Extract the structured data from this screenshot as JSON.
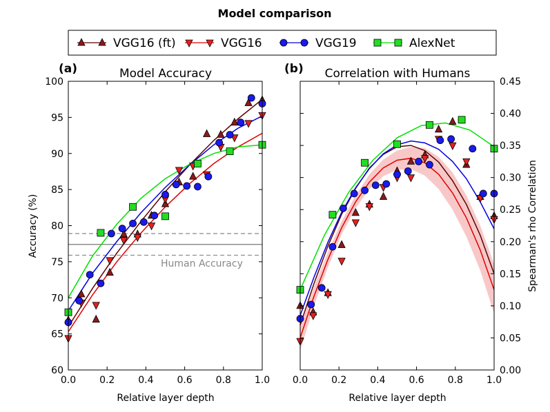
{
  "chart_data": {
    "title": "Model comparison",
    "legend": {
      "position": "top-center",
      "entries": [
        {
          "label": "VGG16 (ft)",
          "color": "#5a0000",
          "marker": "triangle-up",
          "markerFill": "#8b1a1a"
        },
        {
          "label": "VGG16",
          "color": "#e00000",
          "marker": "triangle-down",
          "markerFill": "#e82020"
        },
        {
          "label": "VGG19",
          "color": "#0000e0",
          "marker": "circle",
          "markerFill": "#1a1aee"
        },
        {
          "label": "AlexNet",
          "color": "#00e000",
          "marker": "square",
          "markerFill": "#22dd22"
        }
      ]
    },
    "panels": [
      {
        "panel_label": "(a)",
        "title": "Model Accuracy",
        "type": "scatter",
        "xlabel": "Relative layer depth",
        "ylabel": "Accuracy (%)",
        "xlim": [
          0,
          1
        ],
        "ylim": [
          60,
          100
        ],
        "xticks": [
          "0.0",
          "0.2",
          "0.4",
          "0.6",
          "0.8",
          "1.0"
        ],
        "yticks": [
          "60",
          "65",
          "70",
          "75",
          "80",
          "85",
          "90",
          "95",
          "100"
        ],
        "reference": {
          "label": "Human Accuracy",
          "value": 77.4,
          "band": [
            75.9,
            78.9
          ]
        },
        "series": [
          {
            "name": "VGG16 (ft)",
            "x": [
              0,
              0.067,
              0.143,
              0.214,
              0.286,
              0.357,
              0.429,
              0.5,
              0.571,
              0.643,
              0.714,
              0.786,
              0.857,
              0.929,
              1.0
            ],
            "y": [
              66.9,
              70.5,
              67.0,
              73.5,
              78.8,
              78.8,
              81.4,
              83.0,
              86.0,
              86.8,
              92.7,
              92.6,
              94.3,
              97.0,
              97.4
            ],
            "fit": [
              66.0,
              71.3,
              76.2,
              80.6,
              84.7,
              88.4,
              91.8,
              94.8,
              97.5
            ]
          },
          {
            "name": "VGG16",
            "x": [
              0,
              0.067,
              0.143,
              0.214,
              0.286,
              0.357,
              0.429,
              0.5,
              0.571,
              0.643,
              0.714,
              0.786,
              0.857,
              0.929,
              1.0
            ],
            "y": [
              64.4,
              69.3,
              69.0,
              75.2,
              78.0,
              78.4,
              80.0,
              83.7,
              87.7,
              88.3,
              87.1,
              90.9,
              92.2,
              94.2,
              95.3
            ],
            "fit": [
              65.3,
              70.4,
              75.0,
              79.0,
              82.6,
              85.8,
              88.6,
              90.9,
              92.8
            ]
          },
          {
            "name": "VGG19",
            "x": [
              0,
              0.056,
              0.111,
              0.167,
              0.222,
              0.278,
              0.333,
              0.389,
              0.444,
              0.5,
              0.556,
              0.611,
              0.667,
              0.722,
              0.778,
              0.833,
              0.889,
              0.944,
              1.0
            ],
            "y": [
              66.6,
              69.6,
              73.2,
              72.0,
              78.9,
              79.6,
              80.3,
              80.5,
              81.4,
              84.3,
              85.7,
              85.5,
              85.4,
              86.8,
              91.5,
              92.6,
              94.3,
              97.7,
              96.9
            ],
            "fit": [
              68.2,
              73.4,
              77.8,
              81.8,
              85.3,
              88.4,
              91.2,
              93.5,
              95.2
            ]
          },
          {
            "name": "AlexNet",
            "x": [
              0,
              0.167,
              0.333,
              0.5,
              0.667,
              0.833,
              1.0
            ],
            "y": [
              68.0,
              79.0,
              82.6,
              81.3,
              88.6,
              90.3,
              91.2
            ],
            "fit": [
              70.0,
              75.8,
              80.2,
              83.8,
              86.5,
              88.5,
              90.0,
              90.9,
              91.2
            ]
          }
        ]
      },
      {
        "panel_label": "(b)",
        "title": "Correlation with Humans",
        "type": "scatter",
        "xlabel": "Relative layer depth",
        "ylabel": "Spearman's rho Correlation",
        "xlim": [
          0,
          1
        ],
        "ylim": [
          0,
          0.45
        ],
        "xticks": [
          "0.0",
          "0.2",
          "0.4",
          "0.6",
          "0.8",
          "1.0"
        ],
        "yticks": [
          "0.00",
          "0.05",
          "0.10",
          "0.15",
          "0.20",
          "0.25",
          "0.30",
          "0.35",
          "0.40",
          "0.45"
        ],
        "series": [
          {
            "name": "VGG16 (ft)",
            "x": [
              0,
              0.067,
              0.143,
              0.214,
              0.286,
              0.357,
              0.429,
              0.5,
              0.571,
              0.643,
              0.714,
              0.786,
              0.857,
              0.929,
              1.0
            ],
            "y": [
              0.1,
              0.09,
              0.12,
              0.195,
              0.245,
              0.258,
              0.27,
              0.31,
              0.325,
              0.335,
              0.375,
              0.387,
              0.32,
              0.27,
              0.24
            ],
            "fit": [
              0.07,
              0.135,
              0.193,
              0.243,
              0.283,
              0.315,
              0.336,
              0.348,
              0.35,
              0.342,
              0.324,
              0.295,
              0.258,
              0.21,
              0.15
            ]
          },
          {
            "name": "VGG16",
            "x": [
              0,
              0.067,
              0.143,
              0.214,
              0.286,
              0.357,
              0.429,
              0.5,
              0.571,
              0.643,
              0.714,
              0.786,
              0.857,
              0.929,
              1.0
            ],
            "y": [
              0.045,
              0.085,
              0.118,
              0.17,
              0.23,
              0.255,
              0.285,
              0.3,
              0.3,
              0.33,
              0.36,
              0.35,
              0.325,
              0.268,
              0.235
            ],
            "fit": [
              0.05,
              0.115,
              0.172,
              0.222,
              0.262,
              0.293,
              0.315,
              0.327,
              0.33,
              0.323,
              0.305,
              0.276,
              0.237,
              0.187,
              0.125
            ]
          },
          {
            "name": "VGG19",
            "x": [
              0,
              0.056,
              0.111,
              0.167,
              0.222,
              0.278,
              0.333,
              0.389,
              0.444,
              0.5,
              0.556,
              0.611,
              0.667,
              0.722,
              0.778,
              0.833,
              0.889,
              0.944,
              1.0
            ],
            "y": [
              0.08,
              0.102,
              0.128,
              0.192,
              0.252,
              0.275,
              0.28,
              0.288,
              0.29,
              0.305,
              0.31,
              0.325,
              0.32,
              0.358,
              0.36,
              0.39,
              0.345,
              0.275,
              0.275
            ],
            "fit": [
              0.085,
              0.145,
              0.199,
              0.246,
              0.284,
              0.314,
              0.337,
              0.351,
              0.357,
              0.354,
              0.344,
              0.325,
              0.298,
              0.262,
              0.22
            ]
          },
          {
            "name": "AlexNet",
            "x": [
              0,
              0.167,
              0.333,
              0.5,
              0.667,
              0.833,
              1.0
            ],
            "y": [
              0.125,
              0.242,
              0.323,
              0.352,
              0.382,
              0.39,
              0.345
            ],
            "fit": [
              0.125,
              0.21,
              0.277,
              0.327,
              0.362,
              0.381,
              0.385,
              0.374,
              0.348
            ]
          }
        ],
        "confidence_band": {
          "series": "VGG16",
          "lower": [
            0.03,
            0.1,
            0.16,
            0.212,
            0.252,
            0.282,
            0.302,
            0.312,
            0.313,
            0.303,
            0.282,
            0.25,
            0.208,
            0.155,
            0.088
          ],
          "upper": [
            0.068,
            0.13,
            0.184,
            0.232,
            0.272,
            0.305,
            0.328,
            0.342,
            0.348,
            0.346,
            0.332,
            0.308,
            0.272,
            0.225,
            0.165
          ]
        }
      }
    ]
  }
}
